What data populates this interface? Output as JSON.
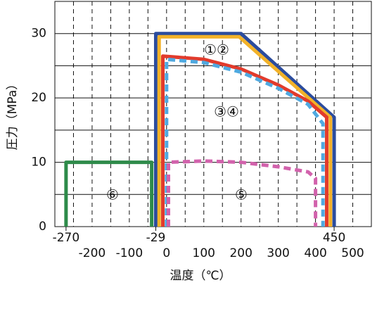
{
  "chart_data": {
    "type": "line",
    "x_label": "温度（℃）",
    "y_label": "圧力（MPa）",
    "xlim": [
      -300,
      550
    ],
    "ylim": [
      0,
      35
    ],
    "xticks": [
      -200,
      -100,
      0,
      100,
      200,
      300,
      400,
      500
    ],
    "xticks_top": [
      -270,
      -29,
      450
    ],
    "yticks": [
      0,
      10,
      20,
      30
    ],
    "grid": true,
    "series": [
      {
        "name": "①②",
        "color": "#2b4c9e",
        "x": [
          -29,
          -29,
          200,
          450,
          450
        ],
        "values": [
          0,
          30,
          30,
          17,
          0
        ]
      },
      {
        "color": "#f2b229",
        "x": [
          -20,
          -20,
          195,
          440,
          440
        ],
        "values": [
          0,
          29.5,
          29.5,
          17,
          0
        ]
      },
      {
        "name": "③④",
        "color": "#e23b2c",
        "x": [
          -10,
          -10,
          100,
          200,
          300,
          380,
          430,
          430
        ],
        "values": [
          0,
          26.5,
          26,
          24.5,
          22,
          19.5,
          17,
          0
        ]
      },
      {
        "color": "#4fa9e0",
        "dashed": true,
        "x": [
          0,
          0,
          100,
          200,
          300,
          380,
          420,
          420
        ],
        "values": [
          0,
          26,
          25.5,
          24,
          21.5,
          19,
          16,
          0
        ]
      },
      {
        "name": "⑤",
        "color": "#d262ac",
        "dashed": true,
        "x": [
          5,
          5,
          100,
          200,
          300,
          380,
          400,
          400
        ],
        "values": [
          0,
          10,
          10.2,
          10,
          9.3,
          8.5,
          7.5,
          0
        ]
      },
      {
        "name": "⑥",
        "color": "#2e8b4a",
        "x": [
          -270,
          -270,
          -40,
          -40
        ],
        "values": [
          0,
          10,
          10,
          0
        ]
      }
    ]
  }
}
